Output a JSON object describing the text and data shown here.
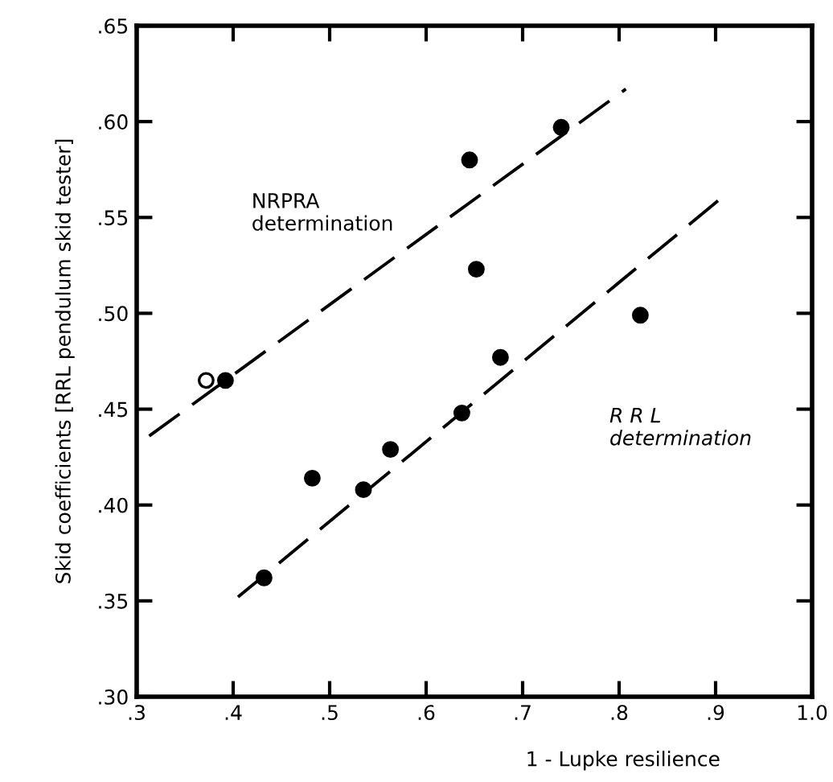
{
  "chart_data": {
    "type": "scatter",
    "xlabel": "1 - Lupke resilience",
    "ylabel": "Skid coefficients [RRL pendulum skid tester]",
    "xlim": [
      0.3,
      1.0
    ],
    "ylim": [
      0.3,
      0.65
    ],
    "xticks": [
      {
        "value": 0.3,
        "label": ".3"
      },
      {
        "value": 0.4,
        "label": ".4"
      },
      {
        "value": 0.5,
        "label": ".5"
      },
      {
        "value": 0.6,
        "label": ".6"
      },
      {
        "value": 0.7,
        "label": ".7"
      },
      {
        "value": 0.8,
        "label": ".8"
      },
      {
        "value": 0.9,
        "label": ".9"
      },
      {
        "value": 1.0,
        "label": "1.0"
      }
    ],
    "yticks": [
      {
        "value": 0.3,
        "label": ".30"
      },
      {
        "value": 0.35,
        "label": ".35"
      },
      {
        "value": 0.4,
        "label": ".40"
      },
      {
        "value": 0.45,
        "label": ".45"
      },
      {
        "value": 0.5,
        "label": ".50"
      },
      {
        "value": 0.55,
        "label": ".55"
      },
      {
        "value": 0.6,
        "label": ".60"
      },
      {
        "value": 0.65,
        "label": ".65"
      }
    ],
    "grid": false,
    "legend": false,
    "series": [
      {
        "color": "#ffffff",
        "marker": "circle",
        "x": [
          0.372
        ],
        "values": [
          0.465
        ]
      },
      {
        "color": "#000000",
        "marker": "circle",
        "x": [
          0.392,
          0.645,
          0.74,
          0.652
        ],
        "values": [
          0.465,
          0.58,
          0.597,
          0.523
        ]
      },
      {
        "color": "#000000",
        "marker": "circle",
        "x": [
          0.432,
          0.482,
          0.535,
          0.563,
          0.637,
          0.677,
          0.822
        ],
        "values": [
          0.362,
          0.414,
          0.408,
          0.429,
          0.448,
          0.477,
          0.499
        ]
      },
      {
        "type": "line",
        "color": "#000000",
        "line_style": "dashed",
        "x": [
          0.313,
          0.807
        ],
        "values": [
          0.436,
          0.617
        ]
      },
      {
        "type": "line",
        "color": "#000000",
        "line_style": "dashed",
        "x": [
          0.405,
          0.908
        ],
        "values": [
          0.352,
          0.561
        ]
      }
    ],
    "annotations": [
      "NRPRA\ndetermination",
      "R R L\ndetermination"
    ]
  }
}
